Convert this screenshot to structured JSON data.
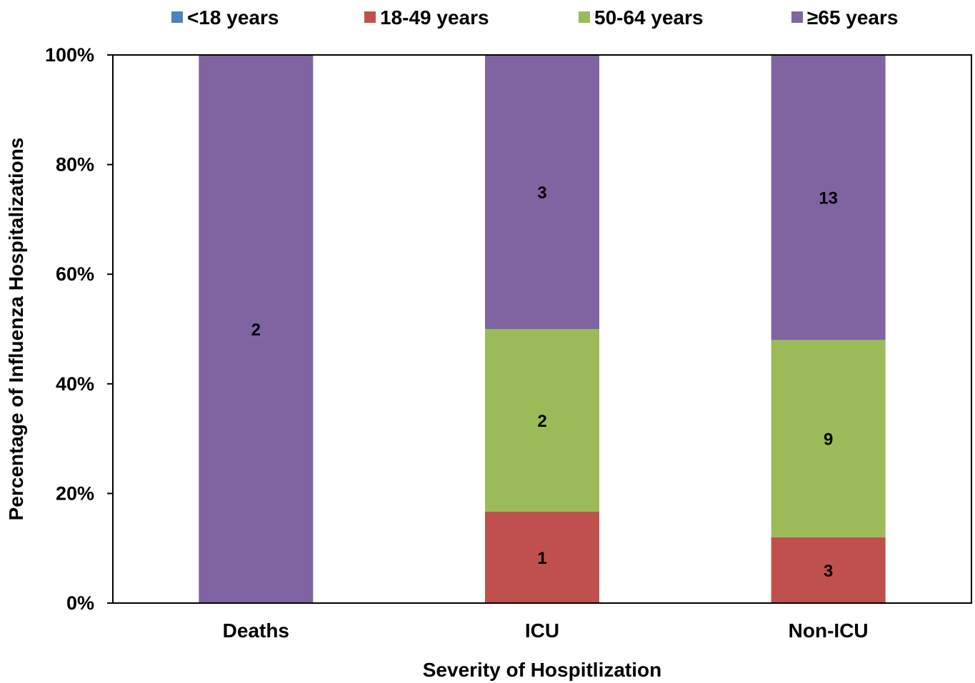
{
  "chart_data": {
    "type": "bar",
    "stacked": true,
    "normalized": true,
    "title": "",
    "xlabel": "Severity of Hospitlization",
    "ylabel": "Percentage of Influenza Hospitalizations",
    "ylim": [
      0,
      100
    ],
    "yticks": [
      "0%",
      "20%",
      "40%",
      "60%",
      "80%",
      "100%"
    ],
    "categories": [
      "Deaths",
      "ICU",
      "Non-ICU"
    ],
    "legend_position": "top",
    "grid": false,
    "series": [
      {
        "name": "<18 years",
        "color": "#4F81BD",
        "values": [
          0,
          0,
          0
        ],
        "labels": [
          "",
          "",
          ""
        ]
      },
      {
        "name": "18-49 years",
        "color": "#C0504D",
        "values": [
          0,
          1,
          3
        ],
        "labels": [
          "",
          "1",
          "3"
        ]
      },
      {
        "name": "50-64 years",
        "color": "#9BBB59",
        "values": [
          0,
          2,
          9
        ],
        "labels": [
          "",
          "2",
          "9"
        ]
      },
      {
        "name": "≥65 years",
        "color": "#8064A2",
        "values": [
          2,
          3,
          13
        ],
        "labels": [
          "2",
          "3",
          "13"
        ]
      }
    ]
  }
}
